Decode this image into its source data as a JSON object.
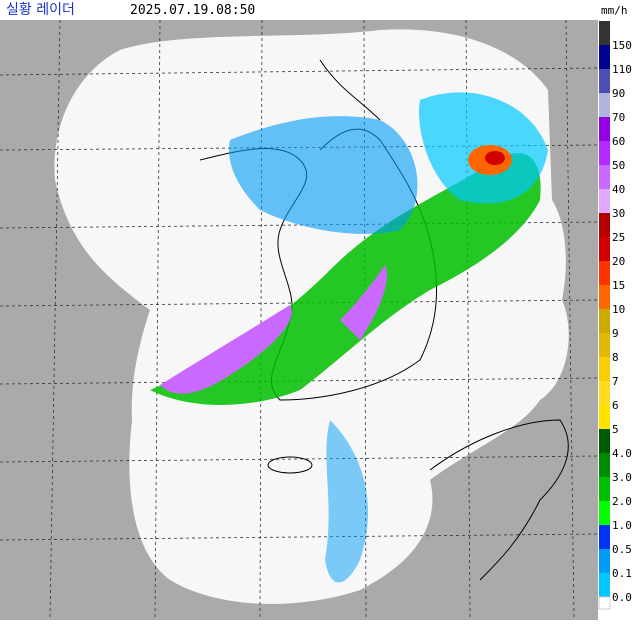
{
  "header": {
    "title": "실황 레이더",
    "timestamp": "2025.07.19.08:50",
    "unit": "mm/h"
  },
  "legend": [
    {
      "label": "150",
      "color": "#333333"
    },
    {
      "label": "110",
      "color": "#000390"
    },
    {
      "label": "90",
      "color": "#4c4eb1"
    },
    {
      "label": "70",
      "color": "#b3b4de"
    },
    {
      "label": "60",
      "color": "#9300e4"
    },
    {
      "label": "50",
      "color": "#b329ff"
    },
    {
      "label": "40",
      "color": "#c969ff"
    },
    {
      "label": "30",
      "color": "#e0a9ff"
    },
    {
      "label": "25",
      "color": "#b40000"
    },
    {
      "label": "20",
      "color": "#d20000"
    },
    {
      "label": "15",
      "color": "#ff3300"
    },
    {
      "label": "10",
      "color": "#ff6600"
    },
    {
      "label": "9",
      "color": "#ccaa00"
    },
    {
      "label": "8",
      "color": "#e0b900"
    },
    {
      "label": "7",
      "color": "#f9cd00"
    },
    {
      "label": "6",
      "color": "#ffdc1f"
    },
    {
      "label": "5",
      "color": "#ffe100"
    },
    {
      "label": "4.0",
      "color": "#005a00"
    },
    {
      "label": "3.0",
      "color": "#008c00"
    },
    {
      "label": "2.0",
      "color": "#00be00"
    },
    {
      "label": "1.0",
      "color": "#00ff00"
    },
    {
      "label": "0.5",
      "color": "#0033f5"
    },
    {
      "label": "0.1",
      "color": "#009bf5"
    },
    {
      "label": "0.0",
      "color": "#00c8ff"
    }
  ]
}
